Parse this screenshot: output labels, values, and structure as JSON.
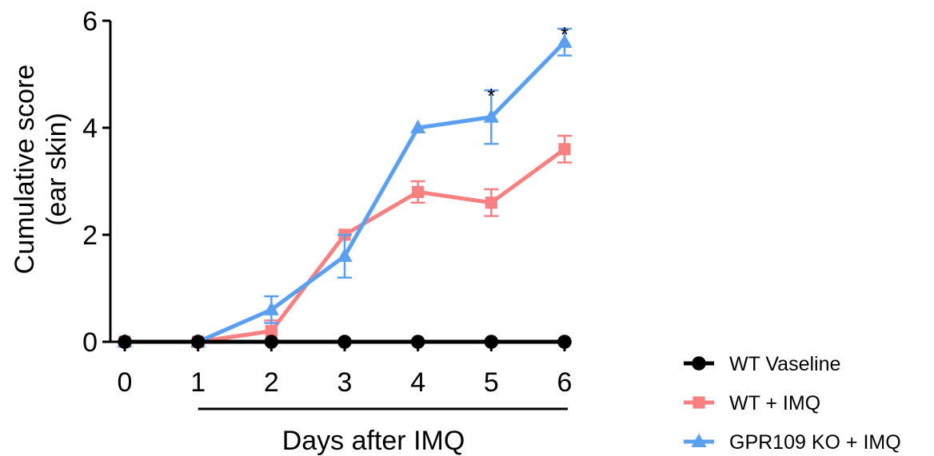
{
  "chart_data": {
    "type": "line",
    "x": [
      0,
      1,
      2,
      3,
      4,
      5,
      6
    ],
    "xlabel": "Days after IMQ",
    "ylabel_lines": [
      "Cumulative score",
      "(ear skin)"
    ],
    "xlim": [
      0,
      6
    ],
    "ylim": [
      0,
      6
    ],
    "xticks": [
      "0",
      "1",
      "2",
      "3",
      "4",
      "5",
      "6"
    ],
    "yticks": [
      "0",
      "2",
      "4",
      "6"
    ],
    "grid": false,
    "legend_position": "bottom-right",
    "series": [
      {
        "name": "WT Vaseline",
        "color": "#000000",
        "marker": "circle",
        "values": [
          0,
          0,
          0,
          0,
          0,
          0,
          0
        ],
        "errors": [
          0,
          0,
          0,
          0,
          0,
          0,
          0
        ]
      },
      {
        "name": "WT + IMQ",
        "color": "#F88080",
        "marker": "square",
        "values": [
          0,
          0,
          0.2,
          2.0,
          2.8,
          2.6,
          3.6
        ],
        "errors": [
          0,
          0,
          0.2,
          0,
          0.2,
          0.25,
          0.25
        ]
      },
      {
        "name": "GPR109 KO + IMQ",
        "color": "#5AA0F0",
        "marker": "triangle",
        "values": [
          0,
          0,
          0.6,
          1.6,
          4.0,
          4.2,
          5.6
        ],
        "errors": [
          0,
          0,
          0.25,
          0.4,
          0,
          0.5,
          0.25
        ]
      }
    ],
    "annotations": [
      {
        "text": "*",
        "x": 5,
        "y": 4.7
      },
      {
        "text": "*",
        "x": 6,
        "y": 5.85
      }
    ],
    "treatment_bar": {
      "from": 1,
      "to": 6
    }
  }
}
